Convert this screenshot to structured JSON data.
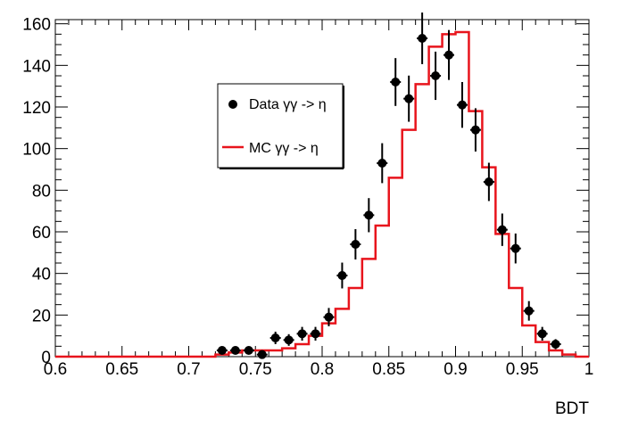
{
  "chart_data": {
    "type": "scatter",
    "title": "",
    "xlabel": "BDT",
    "ylabel": "",
    "xlim": [
      0.6,
      1.0
    ],
    "ylim": [
      0,
      162
    ],
    "grid": false,
    "legend_position": "top-left",
    "x_ticks": [
      "0.6",
      "0.65",
      "0.7",
      "0.75",
      "0.8",
      "0.85",
      "0.9",
      "0.95",
      "1"
    ],
    "y_ticks": [
      "0",
      "20",
      "40",
      "60",
      "80",
      "100",
      "120",
      "140",
      "160"
    ],
    "bin_edges": [
      0.6,
      0.61,
      0.62,
      0.63,
      0.64,
      0.65,
      0.66,
      0.67,
      0.68,
      0.69,
      0.7,
      0.71,
      0.72,
      0.73,
      0.74,
      0.75,
      0.76,
      0.77,
      0.78,
      0.79,
      0.8,
      0.81,
      0.82,
      0.83,
      0.84,
      0.85,
      0.86,
      0.87,
      0.88,
      0.89,
      0.9,
      0.91,
      0.92,
      0.93,
      0.94,
      0.95,
      0.96,
      0.97,
      0.98,
      0.99,
      1.0
    ],
    "series": [
      {
        "name": "Data γγ -> η",
        "kind": "points",
        "color": "#000000",
        "x": [
          0.725,
          0.735,
          0.745,
          0.755,
          0.765,
          0.775,
          0.785,
          0.795,
          0.805,
          0.815,
          0.825,
          0.835,
          0.845,
          0.855,
          0.865,
          0.875,
          0.885,
          0.895,
          0.905,
          0.915,
          0.925,
          0.935,
          0.945,
          0.955,
          0.965,
          0.975
        ],
        "y": [
          3,
          3,
          3,
          1,
          9,
          8,
          11,
          11,
          19,
          39,
          54,
          68,
          93,
          132,
          124,
          153,
          135,
          145,
          121,
          109,
          84,
          61,
          52,
          22,
          11,
          6
        ],
        "err": [
          1.7,
          1.7,
          1.7,
          1.0,
          3.0,
          2.8,
          3.3,
          3.3,
          4.4,
          6.2,
          7.3,
          8.2,
          9.6,
          11.5,
          11.1,
          12.4,
          11.6,
          12.0,
          11.0,
          10.4,
          9.2,
          7.8,
          7.2,
          4.7,
          3.3,
          2.4
        ]
      },
      {
        "name": "MC γγ -> η",
        "kind": "step",
        "color": "#e8141c",
        "values": [
          0,
          0,
          0,
          0,
          0,
          0,
          0,
          0,
          0,
          0,
          0,
          0,
          1,
          2,
          3,
          3,
          3,
          4,
          6,
          10,
          16,
          23,
          33,
          47,
          63,
          86,
          109,
          131,
          149,
          155,
          156,
          118,
          91,
          59,
          33,
          15,
          7,
          3,
          1,
          0
        ]
      }
    ],
    "colors": {
      "data": "#000000",
      "mc": "#e8141c"
    }
  }
}
